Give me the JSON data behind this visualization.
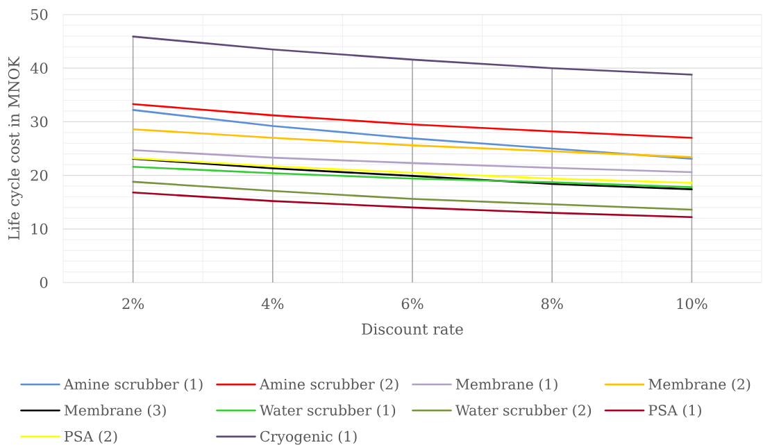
{
  "chart_data": {
    "type": "line",
    "xlabel": "Discount rate",
    "ylabel": "Life cycle cost in MNOK",
    "x": [
      2,
      4,
      6,
      8,
      10
    ],
    "xlim": [
      1,
      11
    ],
    "xticks": [
      {
        "value": 2,
        "label": "2%"
      },
      {
        "value": 4,
        "label": "4%"
      },
      {
        "value": 6,
        "label": "6%"
      },
      {
        "value": 8,
        "label": "8%"
      },
      {
        "value": 10,
        "label": "10%"
      }
    ],
    "ylim": [
      0,
      50
    ],
    "yticks": [
      0,
      10,
      20,
      30,
      40,
      50
    ],
    "grid": true,
    "legend": "bottom",
    "ref_lines": [
      {
        "axis": "x",
        "value": 2,
        "color": "#a6a6a6"
      },
      {
        "axis": "x",
        "value": 4,
        "color": "#a6a6a6"
      },
      {
        "axis": "x",
        "value": 6,
        "color": "#a6a6a6"
      },
      {
        "axis": "x",
        "value": 8,
        "color": "#a6a6a6"
      },
      {
        "axis": "x",
        "value": 10,
        "color": "#a6a6a6"
      }
    ],
    "series": [
      {
        "name": "Amine scrubber (1)",
        "color": "#5b8fd8",
        "values": [
          32.2,
          29.2,
          26.9,
          25.0,
          23.1
        ]
      },
      {
        "name": "Amine scrubber (2)",
        "color": "#ff0000",
        "values": [
          33.3,
          31.2,
          29.5,
          28.2,
          27.0
        ]
      },
      {
        "name": "Membrane (1)",
        "color": "#b1a0c7",
        "values": [
          24.7,
          23.3,
          22.3,
          21.4,
          20.6
        ]
      },
      {
        "name": "Membrane (2)",
        "color": "#ffc000",
        "values": [
          28.6,
          27.0,
          25.6,
          24.5,
          23.4
        ]
      },
      {
        "name": "Membrane (3)",
        "color": "#000000",
        "values": [
          23.1,
          21.3,
          19.9,
          18.4,
          17.4
        ]
      },
      {
        "name": "Water scrubber (1)",
        "color": "#33cc33",
        "values": [
          21.6,
          20.4,
          19.4,
          18.7,
          17.8
        ]
      },
      {
        "name": "Water scrubber (2)",
        "color": "#77933c",
        "values": [
          18.8,
          17.1,
          15.6,
          14.6,
          13.6
        ]
      },
      {
        "name": "PSA (1)",
        "color": "#a50021",
        "values": [
          16.8,
          15.2,
          14.0,
          13.0,
          12.2
        ]
      },
      {
        "name": "PSA (2)",
        "color": "#ffff00",
        "values": [
          23.2,
          21.7,
          20.5,
          19.4,
          18.6
        ]
      },
      {
        "name": "Cryogenic (1)",
        "color": "#5f497a",
        "values": [
          45.9,
          43.5,
          41.6,
          40.0,
          38.8
        ]
      }
    ]
  }
}
